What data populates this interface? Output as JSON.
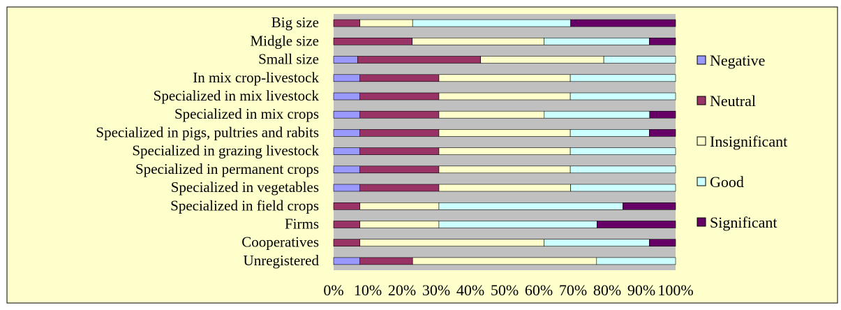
{
  "chart_data": {
    "type": "bar",
    "orientation": "horizontal",
    "stacked": "percent",
    "categories": [
      "Big size",
      "Midgle size",
      "Small size",
      "In mix crop-livestock",
      "Specialized in mix livestock",
      "Specialized in mix crops",
      "Specialized in pigs, pultries and rabits",
      "Specialized in grazing livestock",
      "Specialized in permanent crops",
      "Specialized in vegetables",
      "Specialized in field crops",
      "Firms",
      "Cooperatives",
      "Unregistered"
    ],
    "series": [
      {
        "name": "Negative",
        "color": "#9999ff",
        "values": [
          0,
          0,
          7,
          7.7,
          7.7,
          7.7,
          7.7,
          7.7,
          7.7,
          7.7,
          0,
          0,
          0,
          7.7
        ]
      },
      {
        "name": "Neutral",
        "color": "#993366",
        "values": [
          7.7,
          23,
          36,
          23.1,
          23.1,
          23.1,
          23.1,
          23.1,
          23.1,
          23.1,
          7.7,
          7.7,
          7.7,
          15.4
        ]
      },
      {
        "name": "Insignificant",
        "color": "#ffffcc",
        "values": [
          15.4,
          38.5,
          36,
          38.4,
          38.4,
          30.8,
          38.4,
          38.4,
          38.4,
          38.5,
          23.1,
          23.1,
          53.8,
          53.8
        ]
      },
      {
        "name": "Good",
        "color": "#ccffff",
        "values": [
          46.2,
          30.8,
          21,
          30.8,
          30.8,
          30.8,
          23.1,
          30.8,
          30.8,
          30.7,
          53.8,
          46.2,
          30.8,
          23.1
        ]
      },
      {
        "name": "Significant",
        "color": "#660066",
        "values": [
          30.7,
          7.7,
          0,
          0,
          0,
          7.6,
          7.7,
          0,
          0,
          0,
          15.4,
          23,
          7.7,
          0
        ]
      }
    ],
    "x_ticks": [
      "0%",
      "10%",
      "20%",
      "30%",
      "40%",
      "50%",
      "60%",
      "70%",
      "80%",
      "90%",
      "100%"
    ],
    "xlim": [
      0,
      100
    ],
    "title": "",
    "xlabel": "",
    "ylabel": "",
    "grid": false,
    "legend_position": "right",
    "plot_background": "#c0c0c0",
    "outer_background": "#ffffcc"
  }
}
